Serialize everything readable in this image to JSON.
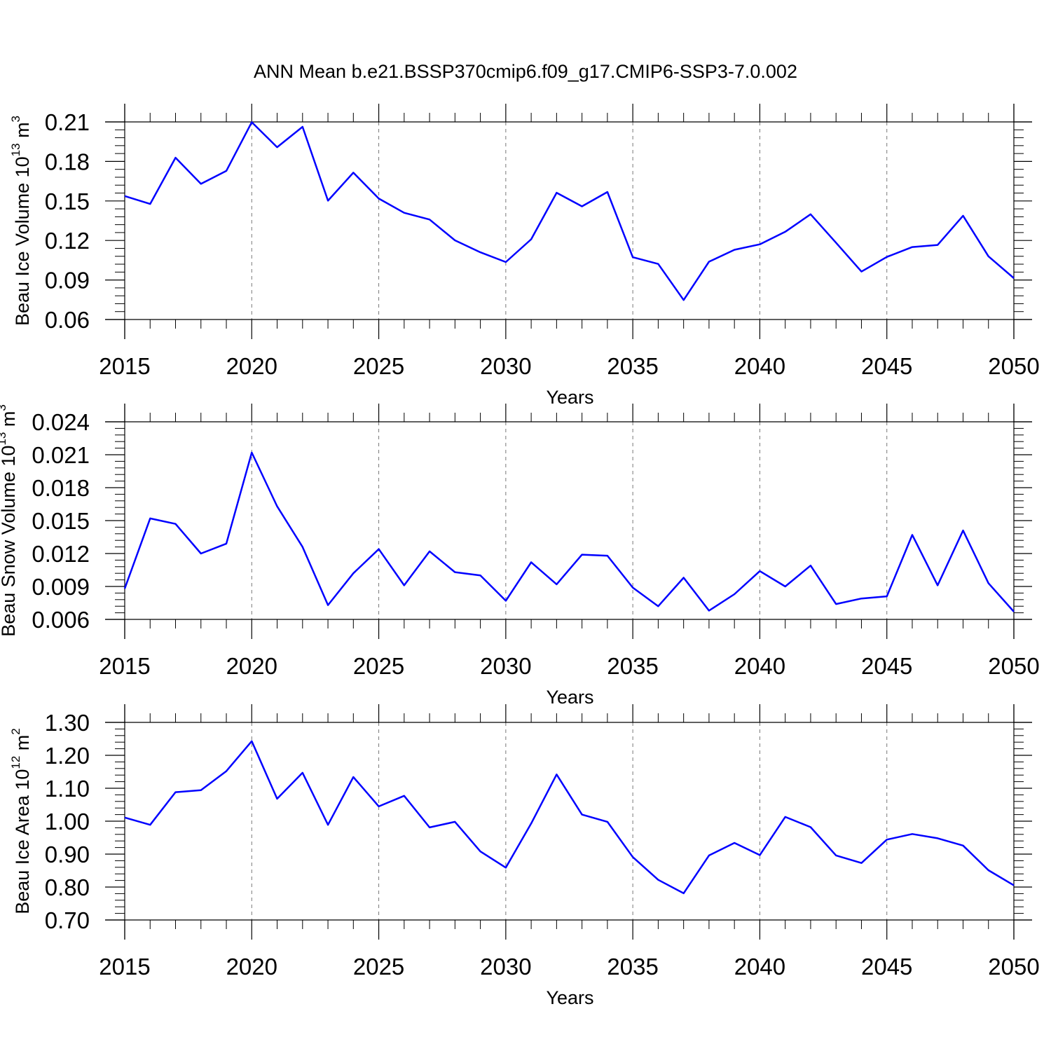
{
  "title": "ANN Mean b.e21.BSSP370cmip6.f09_g17.CMIP6-SSP3-7.0.002",
  "colors": {
    "line": "#0000ff",
    "frame": "#000000",
    "grid": "#777777"
  },
  "chart_data": [
    {
      "type": "line",
      "xlabel": "Years",
      "ylabel": "Beau Ice Volume 10",
      "ylabel_exp": "13",
      "ylabel_unit": " m",
      "ylabel_unit_exp": "3",
      "xlim": [
        2015,
        2050
      ],
      "ylim": [
        0.06,
        0.21
      ],
      "xticks": [
        "2015",
        "2020",
        "2025",
        "2030",
        "2035",
        "2040",
        "2045",
        "2050"
      ],
      "yticks": [
        "0.06",
        "0.09",
        "0.12",
        "0.15",
        "0.18",
        "0.21"
      ],
      "grid": "vertical dashed at major x ticks",
      "x": [
        2015,
        2016,
        2017,
        2018,
        2019,
        2020,
        2021,
        2022,
        2023,
        2024,
        2025,
        2026,
        2027,
        2028,
        2029,
        2030,
        2031,
        2032,
        2033,
        2034,
        2035,
        2036,
        2037,
        2038,
        2039,
        2040,
        2041,
        2042,
        2043,
        2044,
        2045,
        2046,
        2047,
        2048,
        2049,
        2050
      ],
      "series": [
        {
          "values": [
            0.1537,
            0.1477,
            0.1828,
            0.163,
            0.1728,
            0.2098,
            0.1908,
            0.2063,
            0.1502,
            0.1715,
            0.1518,
            0.141,
            0.1359,
            0.1201,
            0.111,
            0.1036,
            0.1209,
            0.1562,
            0.1459,
            0.1568,
            0.1073,
            0.1022,
            0.0748,
            0.1039,
            0.1129,
            0.1171,
            0.1266,
            0.1399,
            0.1183,
            0.0964,
            0.1075,
            0.115,
            0.1166,
            0.1388,
            0.108,
            0.0914
          ]
        }
      ]
    },
    {
      "type": "line",
      "xlabel": "Years",
      "ylabel": "Beau Snow Volume 10",
      "ylabel_exp": "13",
      "ylabel_unit": " m",
      "ylabel_unit_exp": "3",
      "xlim": [
        2015,
        2050
      ],
      "ylim": [
        0.006,
        0.024
      ],
      "xticks": [
        "2015",
        "2020",
        "2025",
        "2030",
        "2035",
        "2040",
        "2045",
        "2050"
      ],
      "yticks": [
        "0.006",
        "0.009",
        "0.012",
        "0.015",
        "0.018",
        "0.021",
        "0.024"
      ],
      "grid": "vertical dashed at major x ticks",
      "x": [
        2015,
        2016,
        2017,
        2018,
        2019,
        2020,
        2021,
        2022,
        2023,
        2024,
        2025,
        2026,
        2027,
        2028,
        2029,
        2030,
        2031,
        2032,
        2033,
        2034,
        2035,
        2036,
        2037,
        2038,
        2039,
        2040,
        2041,
        2042,
        2043,
        2044,
        2045,
        2046,
        2047,
        2048,
        2049,
        2050
      ],
      "series": [
        {
          "values": [
            0.0088,
            0.0152,
            0.0147,
            0.012,
            0.0129,
            0.0212,
            0.0163,
            0.0126,
            0.0073,
            0.0102,
            0.0124,
            0.0091,
            0.0122,
            0.0103,
            0.01,
            0.0077,
            0.0112,
            0.0092,
            0.0119,
            0.0118,
            0.0089,
            0.0072,
            0.0098,
            0.0068,
            0.0083,
            0.0104,
            0.009,
            0.0109,
            0.0074,
            0.0079,
            0.0081,
            0.0137,
            0.0091,
            0.0141,
            0.0093,
            0.0067
          ]
        }
      ]
    },
    {
      "type": "line",
      "xlabel": "Years",
      "ylabel": "Beau Ice Area 10",
      "ylabel_exp": "12",
      "ylabel_unit": " m",
      "ylabel_unit_exp": "2",
      "xlim": [
        2015,
        2050
      ],
      "ylim": [
        0.7,
        1.3
      ],
      "xticks": [
        "2015",
        "2020",
        "2025",
        "2030",
        "2035",
        "2040",
        "2045",
        "2050"
      ],
      "yticks": [
        "0.70",
        "0.80",
        "0.90",
        "1.00",
        "1.10",
        "1.20",
        "1.30"
      ],
      "grid": "vertical dashed at major x ticks",
      "x": [
        2015,
        2016,
        2017,
        2018,
        2019,
        2020,
        2021,
        2022,
        2023,
        2024,
        2025,
        2026,
        2027,
        2028,
        2029,
        2030,
        2031,
        2032,
        2033,
        2034,
        2035,
        2036,
        2037,
        2038,
        2039,
        2040,
        2041,
        2042,
        2043,
        2044,
        2045,
        2046,
        2047,
        2048,
        2049,
        2050
      ],
      "series": [
        {
          "values": [
            1.011,
            0.989,
            1.088,
            1.094,
            1.152,
            1.243,
            1.068,
            1.147,
            0.989,
            1.134,
            1.045,
            1.077,
            0.981,
            0.998,
            0.908,
            0.859,
            0.993,
            1.142,
            1.02,
            0.998,
            0.891,
            0.822,
            0.781,
            0.896,
            0.934,
            0.897,
            1.013,
            0.982,
            0.896,
            0.873,
            0.944,
            0.961,
            0.948,
            0.926,
            0.851,
            0.805
          ]
        }
      ]
    }
  ]
}
